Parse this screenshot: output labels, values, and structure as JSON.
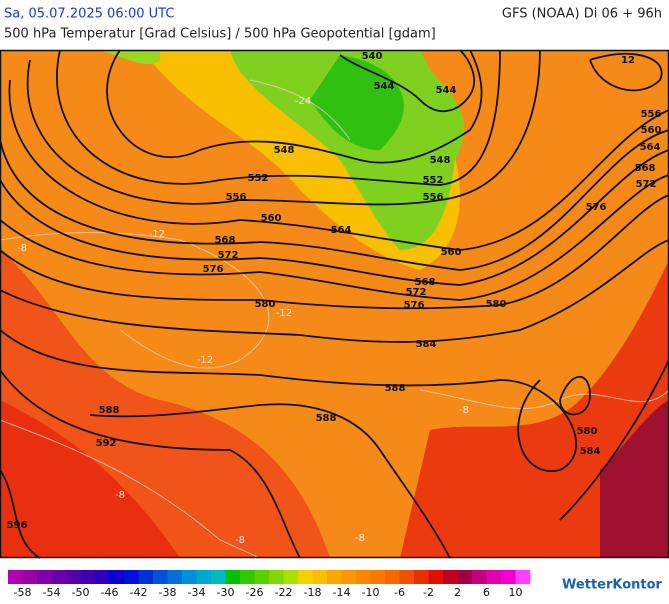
{
  "header": {
    "timestamp": "Sa, 05.07.2025 06:00 UTC",
    "model": "GFS (NOAA) Di 06 + 96h",
    "subtitle": "500 hPa Temperatur [Grad Celsius] / 500 hPa Geopotential [gdam]"
  },
  "contour_labels": [
    "540",
    "544",
    "544",
    "548",
    "548",
    "552",
    "552",
    "556",
    "556",
    "560",
    "560",
    "564",
    "568",
    "568",
    "572",
    "572",
    "576",
    "576",
    "580",
    "580",
    "584",
    "588",
    "588",
    "588",
    "592",
    "596",
    "556",
    "560",
    "564",
    "568",
    "572",
    "576",
    "580",
    "584",
    "12"
  ],
  "temperature_labels": [
    "-24",
    "-12",
    "-12",
    "-12",
    "-8",
    "-8",
    "-8",
    "-8",
    "-8"
  ],
  "colorbar": {
    "range": [
      -60,
      12
    ],
    "ticks": [
      -58,
      -54,
      -50,
      -46,
      -42,
      -38,
      -34,
      -30,
      -26,
      -22,
      -18,
      -14,
      -10,
      -6,
      -2,
      2,
      6,
      10
    ],
    "colors": [
      "#b000b0",
      "#9800a8",
      "#8000a8",
      "#6c00a8",
      "#5800a8",
      "#4000b0",
      "#2800c0",
      "#1000d0",
      "#0010d8",
      "#0030d8",
      "#0050d8",
      "#0070d8",
      "#0090d8",
      "#00a8d0",
      "#00b8c0",
      "#00c000",
      "#30c800",
      "#58d000",
      "#80d800",
      "#a8e000",
      "#f8d000",
      "#f8c000",
      "#f8a800",
      "#f89800",
      "#f88800",
      "#f87800",
      "#f86800",
      "#f05000",
      "#e83000",
      "#e01000",
      "#c00020",
      "#a00040",
      "#c00080",
      "#e000b0",
      "#f000d0",
      "#ff40ff"
    ]
  },
  "logo": "WetterKontor"
}
